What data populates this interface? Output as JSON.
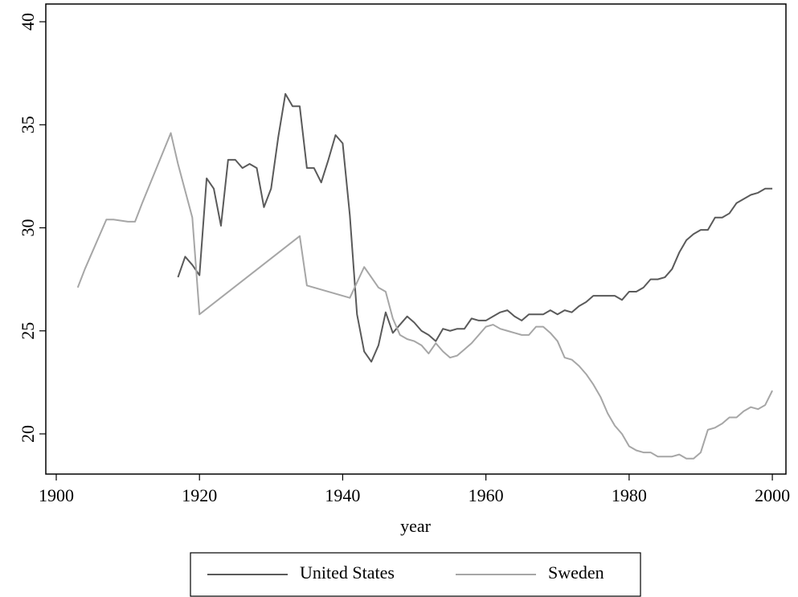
{
  "chart_data": {
    "type": "line",
    "x_label": "year",
    "xlim": [
      1898.54,
      2001.9
    ],
    "xticks": [
      1900,
      1920,
      1940,
      1960,
      1980,
      2000
    ],
    "ylim": [
      18.05,
      40.86
    ],
    "yticks": [
      20,
      25,
      30,
      35,
      40
    ],
    "legend": "bottom",
    "series": [
      {
        "name": "United States",
        "color": "#5a5a5a",
        "x": [
          1917,
          1918,
          1919,
          1920,
          1921,
          1922,
          1923,
          1924,
          1925,
          1926,
          1927,
          1928,
          1929,
          1930,
          1931,
          1932,
          1933,
          1934,
          1935,
          1936,
          1937,
          1938,
          1939,
          1940,
          1941,
          1942,
          1943,
          1944,
          1945,
          1946,
          1947,
          1948,
          1949,
          1950,
          1951,
          1952,
          1953,
          1954,
          1955,
          1956,
          1957,
          1958,
          1959,
          1960,
          1961,
          1962,
          1963,
          1964,
          1965,
          1966,
          1967,
          1968,
          1969,
          1970,
          1971,
          1972,
          1973,
          1974,
          1975,
          1976,
          1977,
          1978,
          1979,
          1980,
          1981,
          1982,
          1983,
          1984,
          1985,
          1986,
          1987,
          1988,
          1989,
          1990,
          1991,
          1992,
          1993,
          1994,
          1995,
          1996,
          1997,
          1998,
          1999,
          2000
        ],
        "values": [
          27.6,
          28.6,
          28.2,
          27.7,
          32.4,
          31.9,
          30.1,
          33.3,
          33.3,
          32.9,
          33.1,
          32.9,
          31.0,
          31.9,
          34.4,
          36.5,
          35.9,
          35.9,
          32.9,
          32.9,
          32.2,
          33.3,
          34.5,
          34.1,
          30.6,
          25.8,
          24.0,
          23.5,
          24.3,
          25.9,
          24.9,
          25.3,
          25.7,
          25.4,
          25.0,
          24.8,
          24.5,
          25.1,
          25.0,
          25.1,
          25.1,
          25.6,
          25.5,
          25.5,
          25.7,
          25.9,
          26.0,
          25.7,
          25.5,
          25.8,
          25.8,
          25.8,
          26.0,
          25.8,
          26.0,
          25.9,
          26.2,
          26.4,
          26.7,
          26.7,
          26.7,
          26.7,
          26.5,
          26.9,
          26.9,
          27.1,
          27.5,
          27.5,
          27.6,
          28.0,
          28.8,
          29.4,
          29.7,
          29.9,
          29.9,
          30.5,
          30.5,
          30.7,
          31.2,
          31.4,
          31.6,
          31.7,
          31.9,
          31.9
        ]
      },
      {
        "name": "Sweden",
        "color": "#a6a6a6",
        "x": [
          1903,
          1904,
          1905,
          1906,
          1907,
          1908,
          1910,
          1911,
          1912,
          1916,
          1917,
          1918,
          1919,
          1920,
          1934,
          1935,
          1941,
          1943,
          1944,
          1945,
          1946,
          1947,
          1948,
          1949,
          1950,
          1951,
          1952,
          1953,
          1954,
          1955,
          1956,
          1957,
          1958,
          1959,
          1960,
          1961,
          1962,
          1963,
          1964,
          1965,
          1966,
          1967,
          1968,
          1969,
          1970,
          1971,
          1972,
          1973,
          1974,
          1975,
          1976,
          1977,
          1978,
          1979,
          1980,
          1981,
          1982,
          1983,
          1984,
          1985,
          1986,
          1987,
          1988,
          1989,
          1990,
          1991,
          1992,
          1993,
          1994,
          1995,
          1996,
          1997,
          1998,
          1999,
          2000
        ],
        "values": [
          27.1,
          28.0,
          28.8,
          29.6,
          30.4,
          30.4,
          30.3,
          30.3,
          31.2,
          34.6,
          33.1,
          31.8,
          30.5,
          25.8,
          29.6,
          27.2,
          26.6,
          28.1,
          27.6,
          27.1,
          26.9,
          25.6,
          24.8,
          24.6,
          24.5,
          24.3,
          23.9,
          24.4,
          24.0,
          23.7,
          23.8,
          24.1,
          24.4,
          24.8,
          25.2,
          25.3,
          25.1,
          25.0,
          24.9,
          24.8,
          24.8,
          25.2,
          25.2,
          24.9,
          24.5,
          23.7,
          23.6,
          23.3,
          22.9,
          22.4,
          21.8,
          21.0,
          20.4,
          20.0,
          19.4,
          19.2,
          19.1,
          19.1,
          18.9,
          18.9,
          18.9,
          19.0,
          18.8,
          18.8,
          19.1,
          20.2,
          20.3,
          20.5,
          20.8,
          20.8,
          21.1,
          21.3,
          21.2,
          21.4,
          22.1
        ]
      }
    ]
  }
}
